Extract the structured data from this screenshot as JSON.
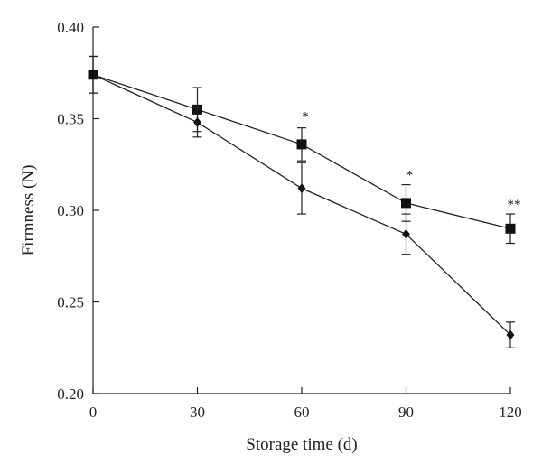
{
  "chart_data": {
    "type": "line",
    "xlabel": "Storage time (d)",
    "ylabel": "Firmness (N)",
    "xlim": [
      0,
      120
    ],
    "ylim": [
      0.2,
      0.4
    ],
    "x_ticks": [
      "0",
      "30",
      "60",
      "90",
      "120"
    ],
    "y_ticks": [
      "0.20",
      "0.25",
      "0.30",
      "0.35",
      "0.40"
    ],
    "grid": false,
    "legend": "none",
    "x": [
      0,
      30,
      60,
      90,
      120
    ],
    "series": [
      {
        "marker": "square",
        "values": [
          0.374,
          0.355,
          0.336,
          0.304,
          0.29
        ],
        "error": [
          0.01,
          0.012,
          0.009,
          0.01,
          0.008
        ]
      },
      {
        "marker": "diamond",
        "values": [
          0.374,
          0.348,
          0.312,
          0.287,
          0.232
        ],
        "error": [
          0.01,
          0.008,
          0.014,
          0.011,
          0.007
        ]
      }
    ],
    "annotations": [
      {
        "x": 60,
        "y": 0.349,
        "text": "*"
      },
      {
        "x": 90,
        "y": 0.317,
        "text": "*"
      },
      {
        "x": 120,
        "y": 0.301,
        "text": "**"
      }
    ],
    "colors": {
      "line": "#222222",
      "marker": "#111111",
      "axis": "#222222"
    }
  }
}
